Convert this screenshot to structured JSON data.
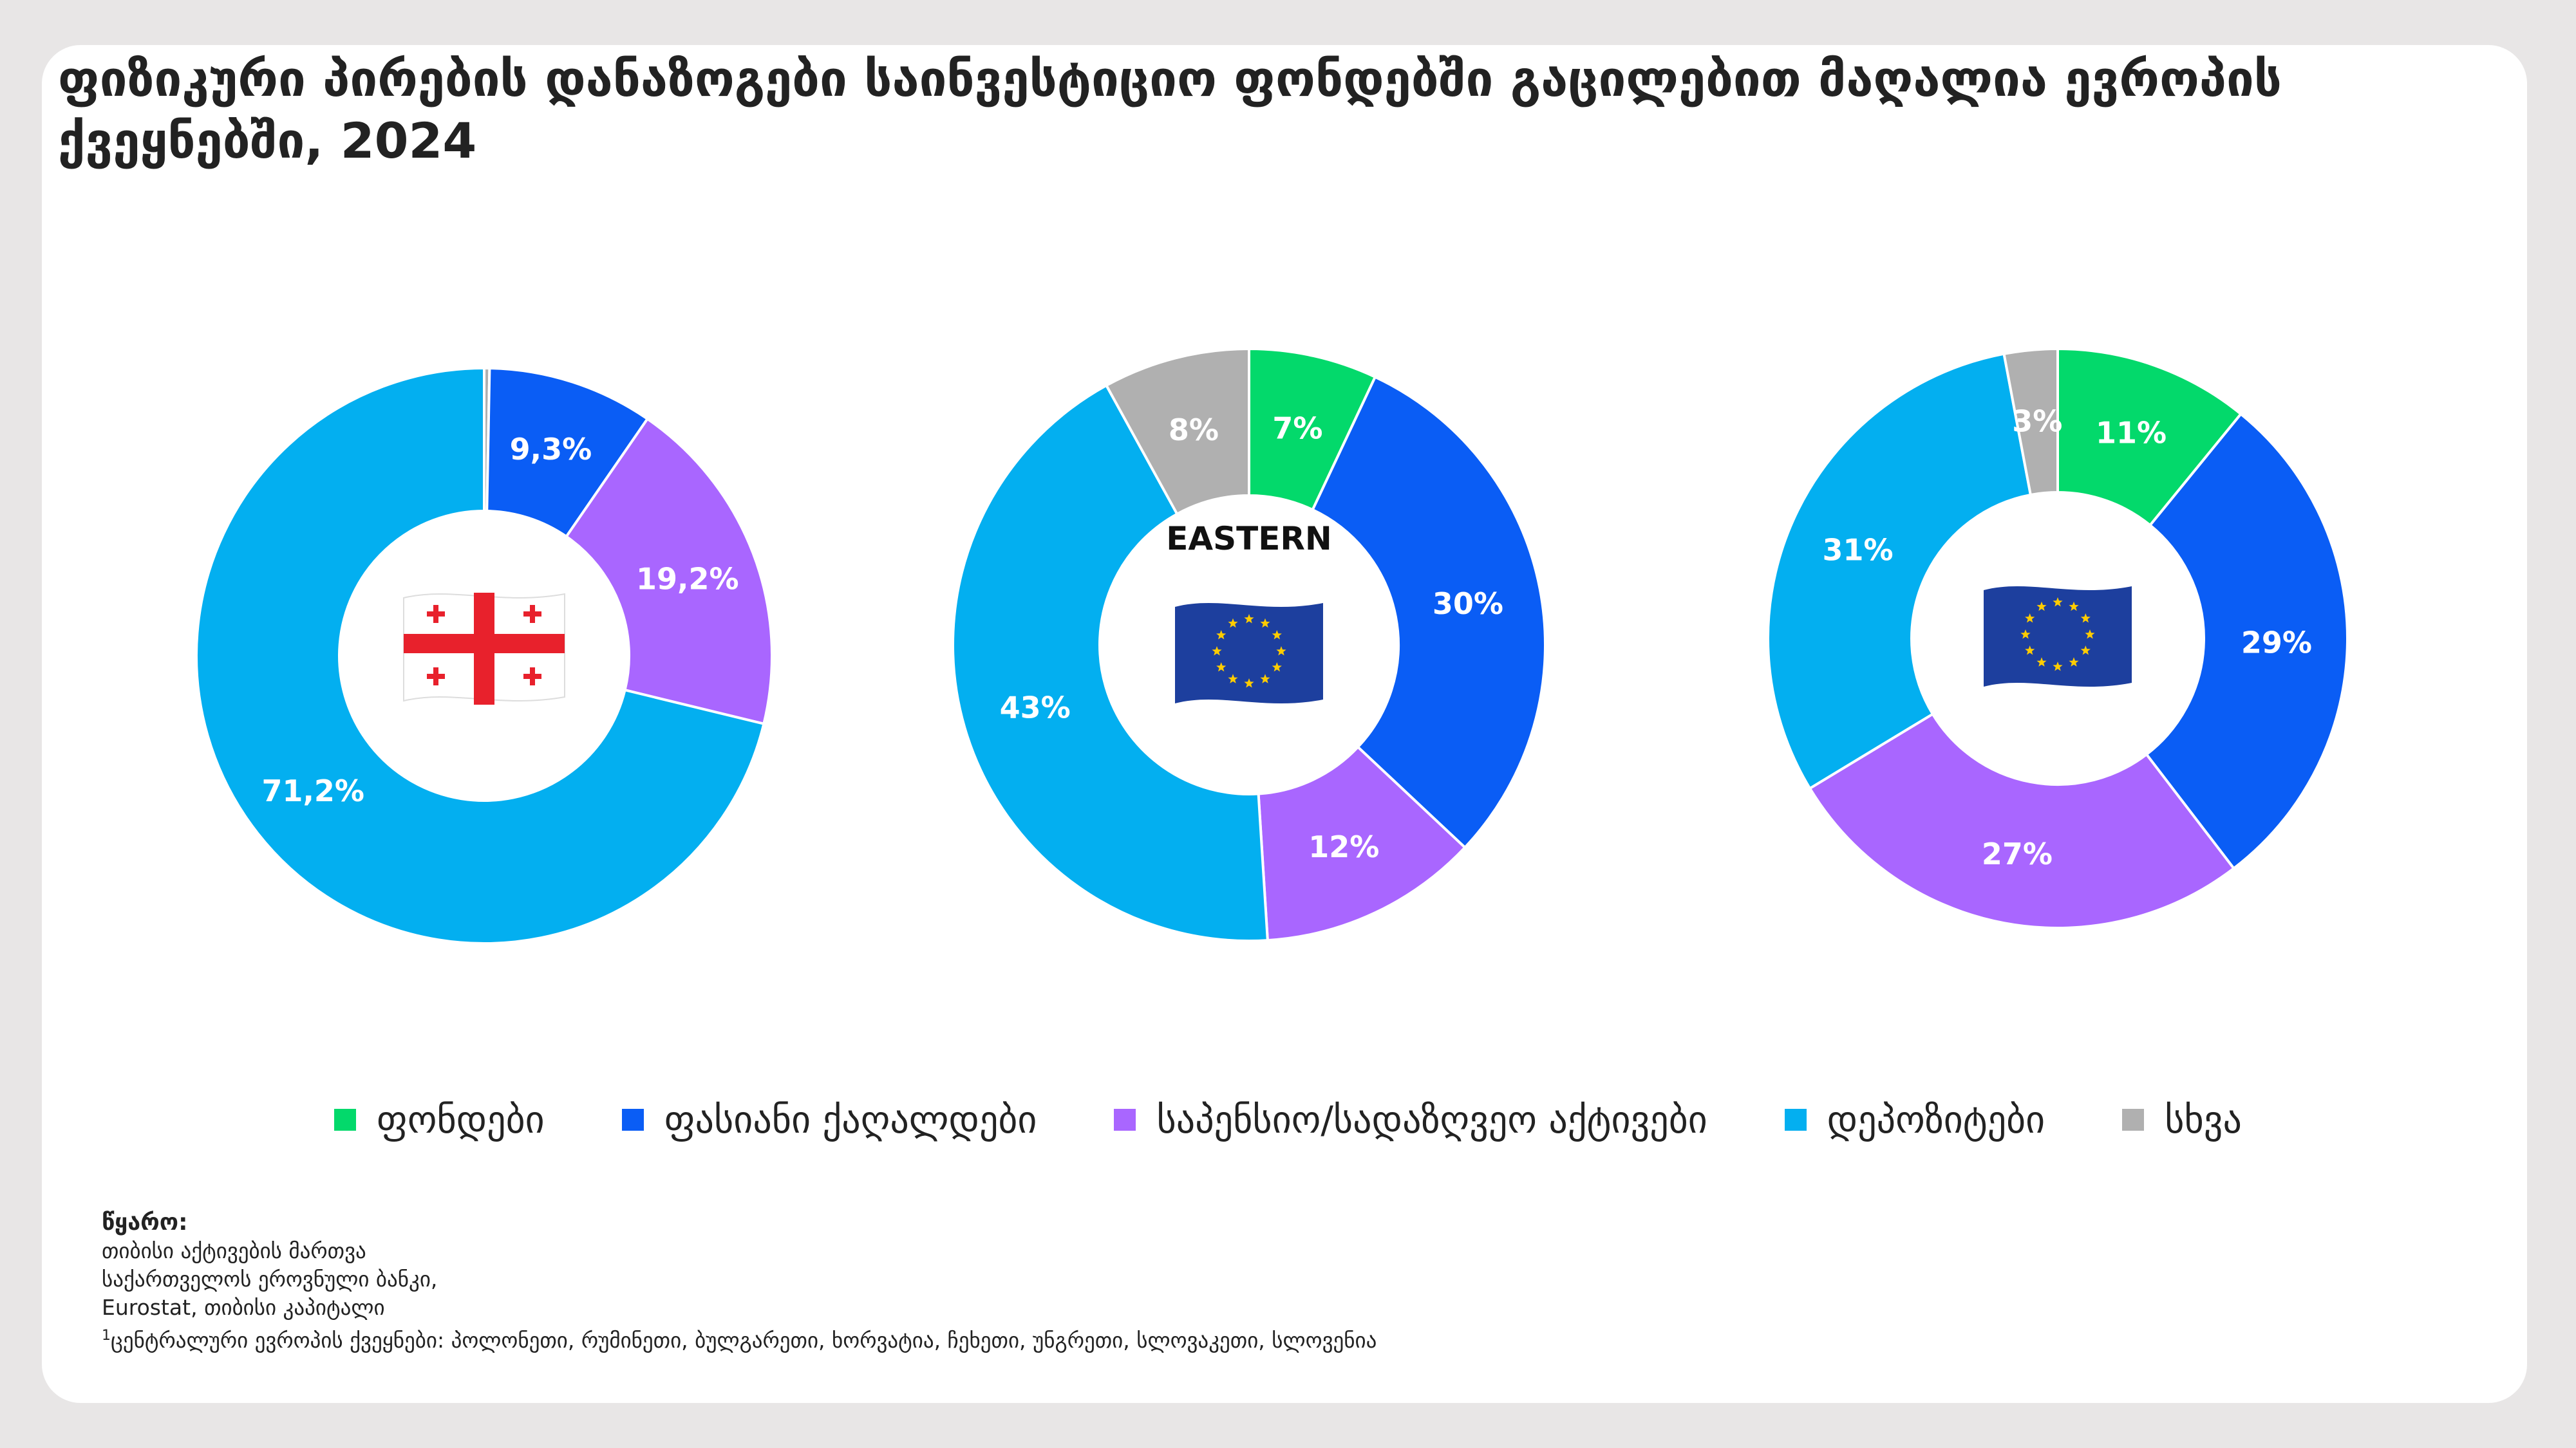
{
  "title": "ფიზიკური პირების დანაზოგები საინვესტიციო ფონდებში გაცილებით მაღალია ევროპის ქვეყნებში, 2024",
  "colors": {
    "funds": "#03d96b",
    "securities": "#0a5df5",
    "pension": "#a966ff",
    "deposits": "#03aff0",
    "other": "#b0b0b0"
  },
  "chart_data": [
    {
      "type": "pie",
      "center_icon": "georgia-flag-icon",
      "center_label": "",
      "slices": [
        {
          "key": "other",
          "value": 0.3,
          "label": ""
        },
        {
          "key": "securities",
          "value": 9.3,
          "label": "9,3%"
        },
        {
          "key": "pension",
          "value": 19.2,
          "label": "19,2%"
        },
        {
          "key": "deposits",
          "value": 71.2,
          "label": "71,2%"
        }
      ]
    },
    {
      "type": "pie",
      "center_icon": "eu-flag-icon",
      "center_label": "EASTERN",
      "slices": [
        {
          "key": "funds",
          "value": 7,
          "label": "7%"
        },
        {
          "key": "securities",
          "value": 30,
          "label": "30%"
        },
        {
          "key": "pension",
          "value": 12,
          "label": "12%"
        },
        {
          "key": "deposits",
          "value": 43,
          "label": "43%"
        },
        {
          "key": "other",
          "value": 8,
          "label": "8%"
        }
      ]
    },
    {
      "type": "pie",
      "center_icon": "eu-flag-icon",
      "center_label": "",
      "slices": [
        {
          "key": "funds",
          "value": 11,
          "label": "11%"
        },
        {
          "key": "securities",
          "value": 29,
          "label": "29%"
        },
        {
          "key": "pension",
          "value": 27,
          "label": "27%"
        },
        {
          "key": "deposits",
          "value": 31,
          "label": "31%"
        },
        {
          "key": "other",
          "value": 3,
          "label": "3%"
        }
      ]
    }
  ],
  "legend": [
    {
      "key": "funds",
      "label": "ფონდები"
    },
    {
      "key": "securities",
      "label": "ფასიანი ქაღალდები"
    },
    {
      "key": "pension",
      "label": "საპენსიო/სადაზღვეო აქტივები"
    },
    {
      "key": "deposits",
      "label": "დეპოზიტები"
    },
    {
      "key": "other",
      "label": "სხვა"
    }
  ],
  "source": {
    "heading": "წყარო:",
    "line1": "თიბისი აქტივების მართვა",
    "line2": "საქართველოს ეროვნული ბანკი,",
    "line3": "Eurostat, თიბისი კაპიტალი",
    "footnote_mark": "1",
    "footnote": "ცენტრალური ევროპის ქვეყნები: პოლონეთი, რუმინეთი, ბულგარეთი, ხორვატია, ჩეხეთი, უნგრეთი, სლოვაკეთი, სლოვენია"
  }
}
